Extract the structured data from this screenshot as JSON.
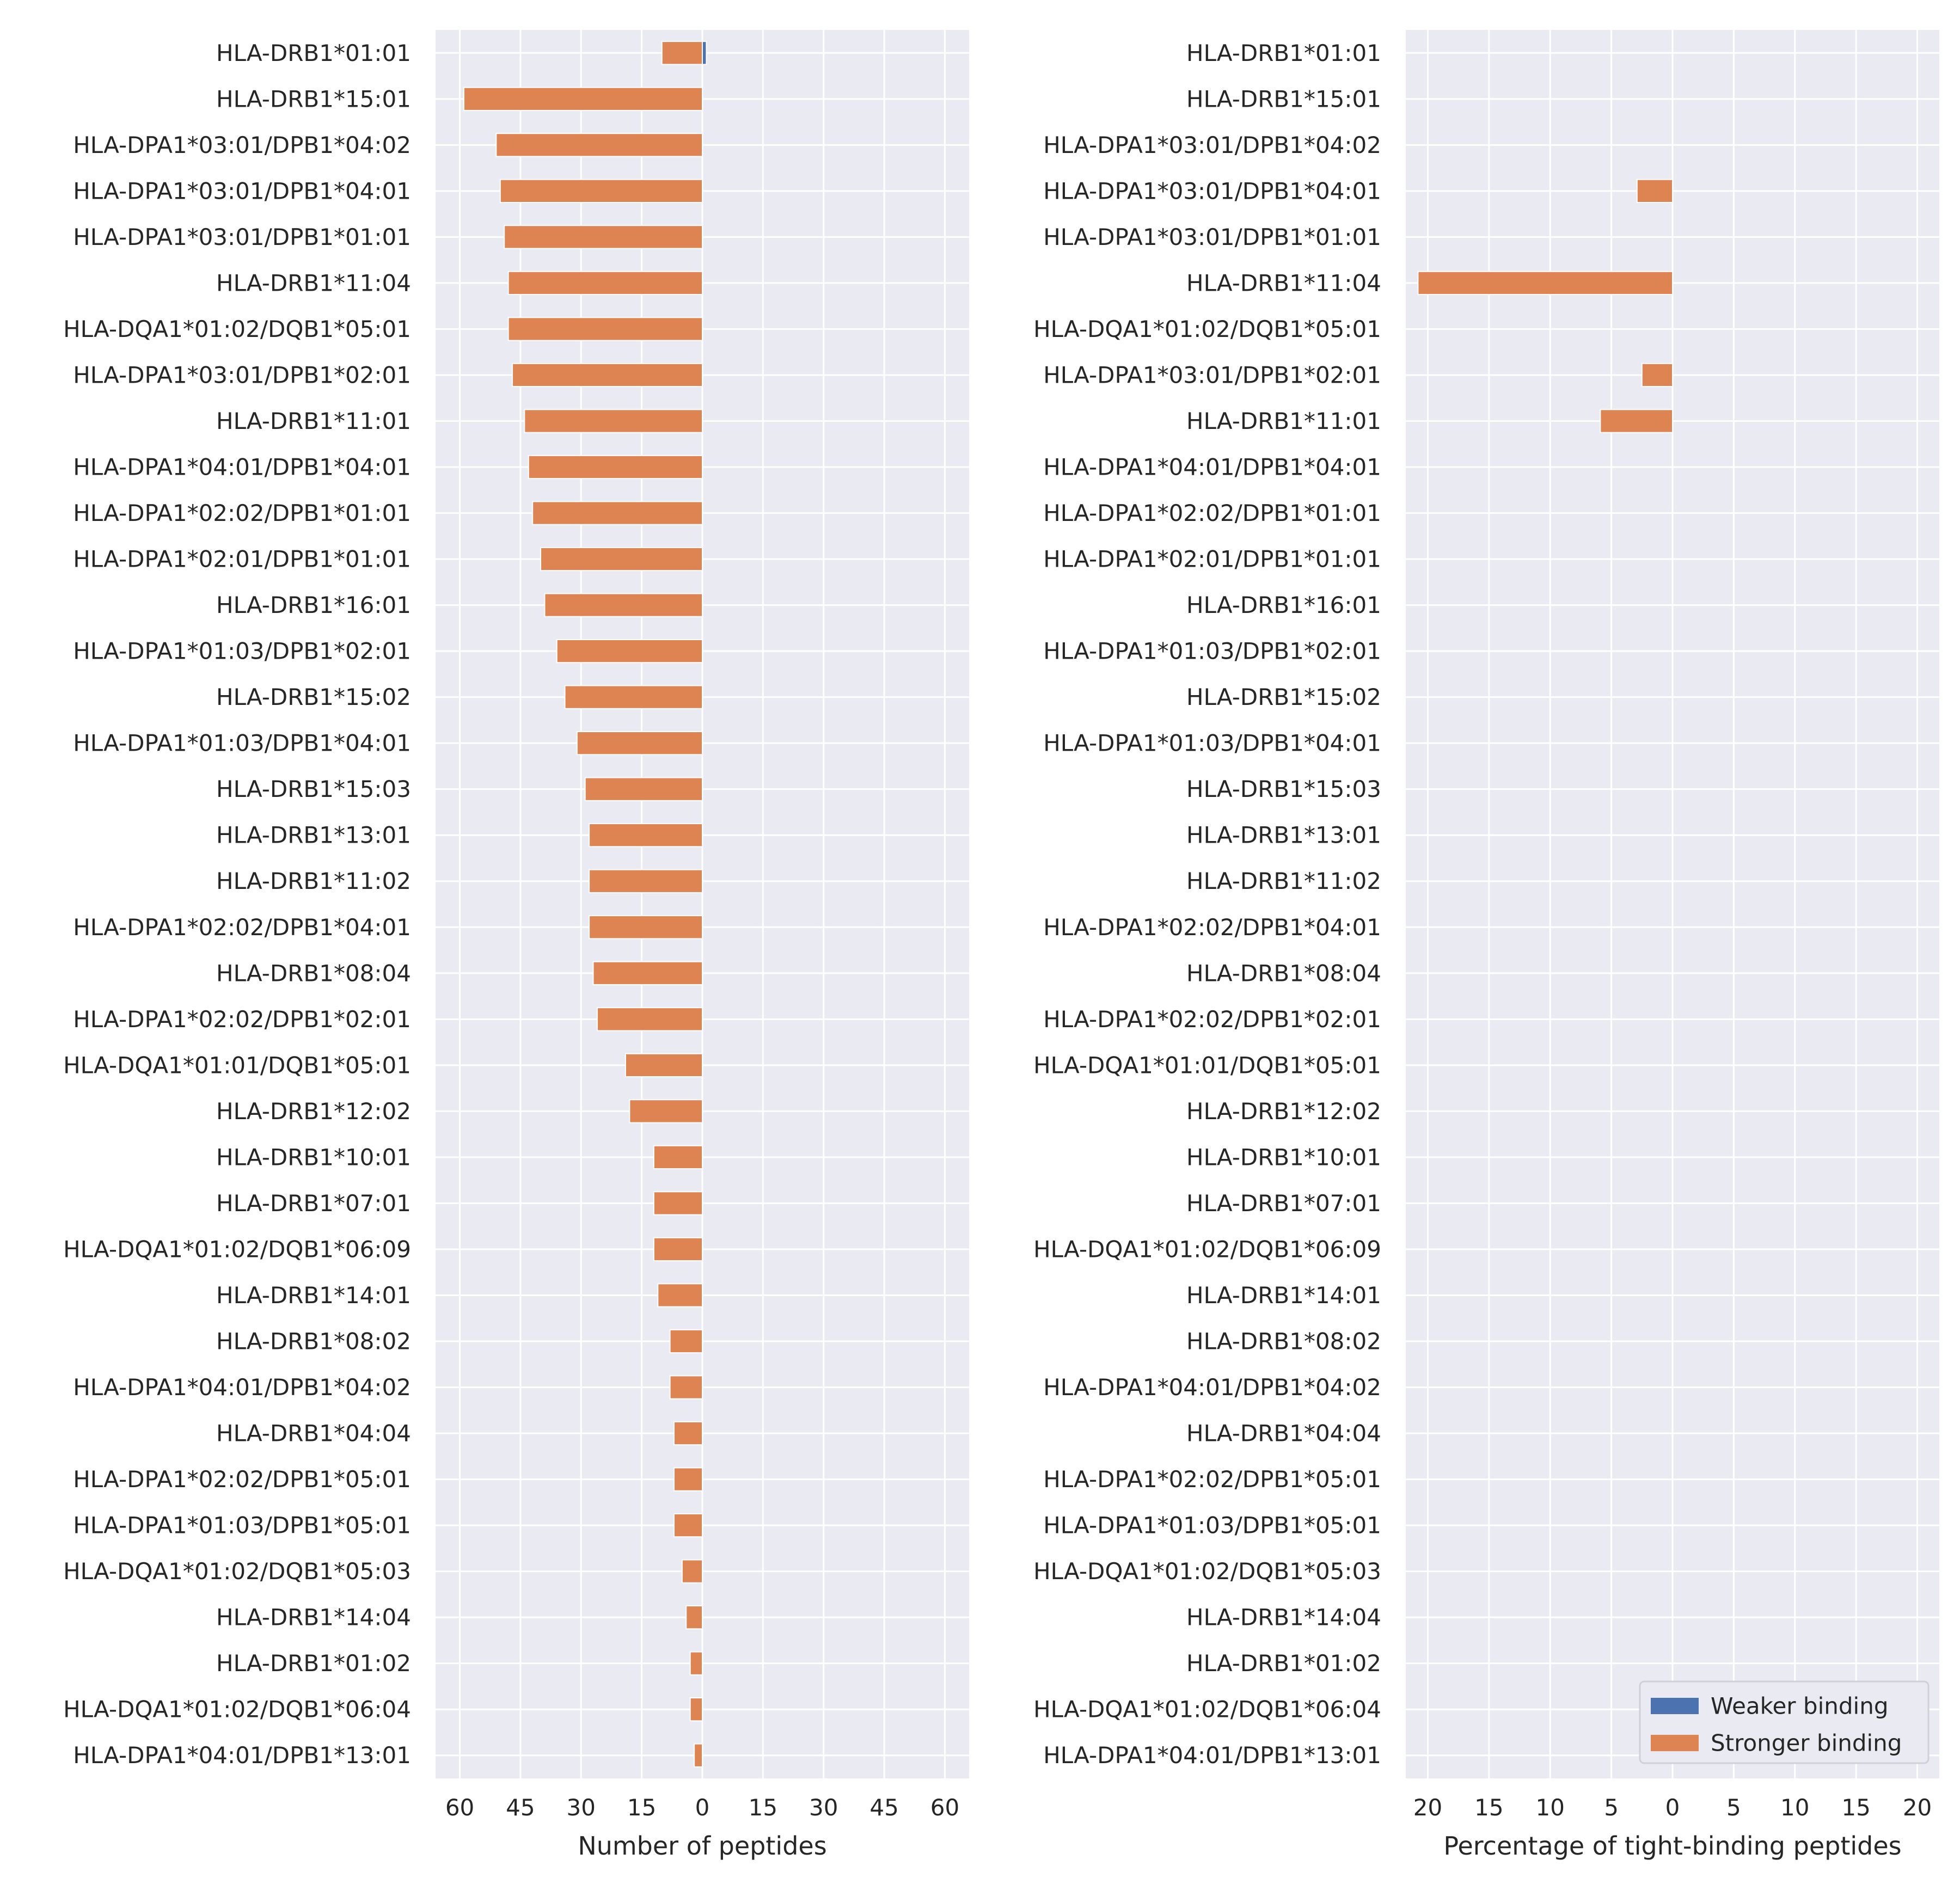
{
  "chart_data": [
    {
      "type": "bar",
      "orientation": "horizontal-diverging",
      "xlabel": "Number of peptides",
      "xlim": [
        -66,
        66
      ],
      "xticks": [
        -60,
        -45,
        -30,
        -15,
        0,
        15,
        30,
        45,
        60
      ],
      "xtick_labels": [
        "60",
        "45",
        "30",
        "15",
        "0",
        "15",
        "30",
        "45",
        "60"
      ],
      "grid": true,
      "categories": [
        "HLA-DRB1*01:01",
        "HLA-DRB1*15:01",
        "HLA-DPA1*03:01/DPB1*04:02",
        "HLA-DPA1*03:01/DPB1*04:01",
        "HLA-DPA1*03:01/DPB1*01:01",
        "HLA-DRB1*11:04",
        "HLA-DQA1*01:02/DQB1*05:01",
        "HLA-DPA1*03:01/DPB1*02:01",
        "HLA-DRB1*11:01",
        "HLA-DPA1*04:01/DPB1*04:01",
        "HLA-DPA1*02:02/DPB1*01:01",
        "HLA-DPA1*02:01/DPB1*01:01",
        "HLA-DRB1*16:01",
        "HLA-DPA1*01:03/DPB1*02:01",
        "HLA-DRB1*15:02",
        "HLA-DPA1*01:03/DPB1*04:01",
        "HLA-DRB1*15:03",
        "HLA-DRB1*13:01",
        "HLA-DRB1*11:02",
        "HLA-DPA1*02:02/DPB1*04:01",
        "HLA-DRB1*08:04",
        "HLA-DPA1*02:02/DPB1*02:01",
        "HLA-DQA1*01:01/DQB1*05:01",
        "HLA-DRB1*12:02",
        "HLA-DRB1*10:01",
        "HLA-DRB1*07:01",
        "HLA-DQA1*01:02/DQB1*06:09",
        "HLA-DRB1*14:01",
        "HLA-DRB1*08:02",
        "HLA-DPA1*04:01/DPB1*04:02",
        "HLA-DRB1*04:04",
        "HLA-DPA1*02:02/DPB1*05:01",
        "HLA-DPA1*01:03/DPB1*05:01",
        "HLA-DQA1*01:02/DQB1*05:03",
        "HLA-DRB1*14:04",
        "HLA-DRB1*01:02",
        "HLA-DQA1*01:02/DQB1*06:04",
        "HLA-DPA1*04:01/DPB1*13:01"
      ],
      "series": [
        {
          "name": "Weaker binding",
          "color": "#4c72b0",
          "values": [
            1,
            0,
            0,
            0,
            0,
            0,
            0,
            0,
            0,
            0,
            0,
            0,
            0,
            0,
            0,
            0,
            0,
            0,
            0,
            0,
            0,
            0,
            0,
            0,
            0,
            0,
            0,
            0,
            0,
            0,
            0,
            0,
            0,
            0,
            0,
            0,
            0,
            0
          ]
        },
        {
          "name": "Stronger binding",
          "color": "#dd8452",
          "values": [
            10,
            59,
            51,
            50,
            49,
            48,
            48,
            47,
            44,
            43,
            42,
            40,
            39,
            36,
            34,
            31,
            29,
            28,
            28,
            28,
            27,
            26,
            19,
            18,
            12,
            12,
            12,
            11,
            8,
            8,
            7,
            7,
            7,
            5,
            4,
            3,
            3,
            2
          ]
        }
      ]
    },
    {
      "type": "bar",
      "orientation": "horizontal-diverging",
      "xlabel": "Percentage of tight-binding peptides",
      "xlim": [
        -21.8,
        21.8
      ],
      "xticks": [
        -20,
        -15,
        -10,
        -5,
        0,
        5,
        10,
        15,
        20
      ],
      "xtick_labels": [
        "20",
        "15",
        "10",
        "5",
        "0",
        "5",
        "10",
        "15",
        "20"
      ],
      "grid": true,
      "legend": {
        "placement": "lower right",
        "entries": [
          "Weaker binding",
          "Stronger binding"
        ]
      },
      "categories": [
        "HLA-DRB1*01:01",
        "HLA-DRB1*15:01",
        "HLA-DPA1*03:01/DPB1*04:02",
        "HLA-DPA1*03:01/DPB1*04:01",
        "HLA-DPA1*03:01/DPB1*01:01",
        "HLA-DRB1*11:04",
        "HLA-DQA1*01:02/DQB1*05:01",
        "HLA-DPA1*03:01/DPB1*02:01",
        "HLA-DRB1*11:01",
        "HLA-DPA1*04:01/DPB1*04:01",
        "HLA-DPA1*02:02/DPB1*01:01",
        "HLA-DPA1*02:01/DPB1*01:01",
        "HLA-DRB1*16:01",
        "HLA-DPA1*01:03/DPB1*02:01",
        "HLA-DRB1*15:02",
        "HLA-DPA1*01:03/DPB1*04:01",
        "HLA-DRB1*15:03",
        "HLA-DRB1*13:01",
        "HLA-DRB1*11:02",
        "HLA-DPA1*02:02/DPB1*04:01",
        "HLA-DRB1*08:04",
        "HLA-DPA1*02:02/DPB1*02:01",
        "HLA-DQA1*01:01/DQB1*05:01",
        "HLA-DRB1*12:02",
        "HLA-DRB1*10:01",
        "HLA-DRB1*07:01",
        "HLA-DQA1*01:02/DQB1*06:09",
        "HLA-DRB1*14:01",
        "HLA-DRB1*08:02",
        "HLA-DPA1*04:01/DPB1*04:02",
        "HLA-DRB1*04:04",
        "HLA-DPA1*02:02/DPB1*05:01",
        "HLA-DPA1*01:03/DPB1*05:01",
        "HLA-DQA1*01:02/DQB1*05:03",
        "HLA-DRB1*14:04",
        "HLA-DRB1*01:02",
        "HLA-DQA1*01:02/DQB1*06:04",
        "HLA-DPA1*04:01/DPB1*13:01"
      ],
      "series": [
        {
          "name": "Weaker binding",
          "color": "#4c72b0",
          "values": [
            0,
            0,
            0,
            0,
            0,
            0,
            0,
            0,
            0,
            0,
            0,
            0,
            0,
            0,
            0,
            0,
            0,
            0,
            0,
            0,
            0,
            0,
            0,
            0,
            0,
            0,
            0,
            0,
            0,
            0,
            0,
            0,
            0,
            0,
            0,
            0,
            0,
            0
          ]
        },
        {
          "name": "Stronger binding",
          "color": "#dd8452",
          "values": [
            0,
            0,
            0,
            2.9,
            0,
            20.8,
            0,
            2.5,
            5.9,
            0,
            0,
            0,
            0,
            0,
            0,
            0,
            0,
            0,
            0,
            0,
            0,
            0,
            0,
            0,
            0,
            0,
            0,
            0,
            0,
            0,
            0,
            0,
            0,
            0,
            0,
            0,
            0,
            0
          ]
        }
      ]
    }
  ]
}
